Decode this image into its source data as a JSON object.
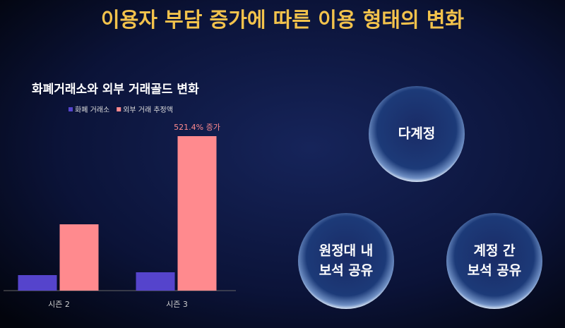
{
  "title": "이용자 부담 증가에 따른 이용 형태의 변화",
  "chart_data": {
    "type": "bar",
    "title": "화폐거래소와 외부 거래골드 변화",
    "categories": [
      "시즌 2",
      "시즌 3"
    ],
    "series": [
      {
        "name": "화폐 거래소",
        "color": "#5544cc",
        "values": [
          22,
          26
        ]
      },
      {
        "name": "외부 거래 추정액",
        "color": "#ff8a8e",
        "values": [
          94,
          219
        ]
      }
    ],
    "ylim": [
      0,
      240
    ],
    "annotation": "521.4% 증가"
  },
  "circles": [
    {
      "lines": [
        "다계정"
      ]
    },
    {
      "lines": [
        "원정대 내",
        "보석 공유"
      ]
    },
    {
      "lines": [
        "계정 간",
        "보석 공유"
      ]
    }
  ]
}
